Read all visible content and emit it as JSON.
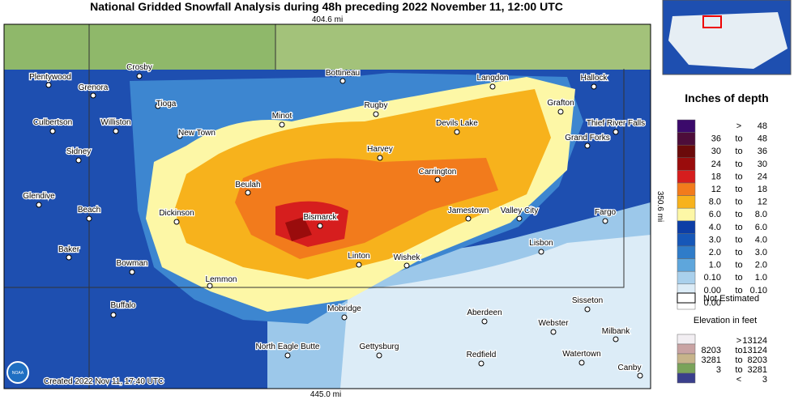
{
  "header": {
    "title": "National Gridded Snowfall Analysis during 48h preceding 2022 November 11, 12:00 UTC"
  },
  "map": {
    "top_distance": "404.6 mi",
    "right_distance": "350.6 mi",
    "bottom_distance": "445.0 mi",
    "created": "Created 2022 Nov 11, 17:40 UTC",
    "logo": "NOAA",
    "cities": [
      "Plentywood",
      "Crosby",
      "Grenora",
      "Bottineau",
      "Langdon",
      "Hallock",
      "Tioga",
      "Rugby",
      "Grafton",
      "Culbertson",
      "Williston",
      "Minot",
      "Devils Lake",
      "Thief River Falls",
      "New Town",
      "Grand Forks",
      "Sidney",
      "Harvey",
      "Carrington",
      "Beulah",
      "Glendive",
      "Beach",
      "Dickinson",
      "Bismarck",
      "Jamestown",
      "Valley City",
      "Fargo",
      "Lisbon",
      "Baker",
      "Bowman",
      "Linton",
      "Wishek",
      "Lemmon",
      "Buffalo",
      "Mobridge",
      "Aberdeen",
      "Sisseton",
      "Webster",
      "Milbank",
      "North Eagle Butte",
      "Gettysburg",
      "Redfield",
      "Watertown",
      "Canby"
    ]
  },
  "legend": {
    "title": "Inches of depth",
    "rows": [
      {
        "parts": [
          ">",
          "48"
        ],
        "color": "#3b0a6b"
      },
      {
        "parts": [
          "36",
          "to",
          "48"
        ],
        "color": "#4d0d3a"
      },
      {
        "parts": [
          "30",
          "to",
          "36"
        ],
        "color": "#6b0a0a"
      },
      {
        "parts": [
          "24",
          "to",
          "30"
        ],
        "color": "#9a0c0c"
      },
      {
        "parts": [
          "18",
          "to",
          "24"
        ],
        "color": "#d61e1e"
      },
      {
        "parts": [
          "12",
          "to",
          "18"
        ],
        "color": "#f27b1c"
      },
      {
        "parts": [
          "8.0",
          "to",
          "12"
        ],
        "color": "#f7b21c"
      },
      {
        "parts": [
          "6.0",
          "to",
          "8.0"
        ],
        "color": "#fdf7a6"
      },
      {
        "parts": [
          "4.0",
          "to",
          "6.0"
        ],
        "color": "#0d3ea6"
      },
      {
        "parts": [
          "3.0",
          "to",
          "4.0"
        ],
        "color": "#1657b8"
      },
      {
        "parts": [
          "2.0",
          "to",
          "3.0"
        ],
        "color": "#2f7cc9"
      },
      {
        "parts": [
          "1.0",
          "to",
          "2.0"
        ],
        "color": "#5ea6dc"
      },
      {
        "parts": [
          "0.10",
          "to",
          "1.0"
        ],
        "color": "#a9d0ec"
      },
      {
        "parts": [
          "0.00",
          "to",
          "0.10"
        ],
        "color": "#dcecf7"
      },
      {
        "parts": [
          "0.00"
        ],
        "color": "#ffffff"
      }
    ],
    "not_estimated": "Not Estimated",
    "elevation_title": "Elevation in feet",
    "elevation_rows": [
      {
        "parts": [
          ">",
          "13124"
        ],
        "color": "#f2eef2"
      },
      {
        "parts": [
          "8203",
          "to",
          "13124"
        ],
        "color": "#c9a3a3"
      },
      {
        "parts": [
          "3281",
          "to",
          "8203"
        ],
        "color": "#c7b48a"
      },
      {
        "parts": [
          "3",
          "to",
          "3281"
        ],
        "color": "#7aa35a"
      },
      {
        "parts": [
          "<",
          "3"
        ],
        "color": "#3a3f8c"
      }
    ]
  }
}
